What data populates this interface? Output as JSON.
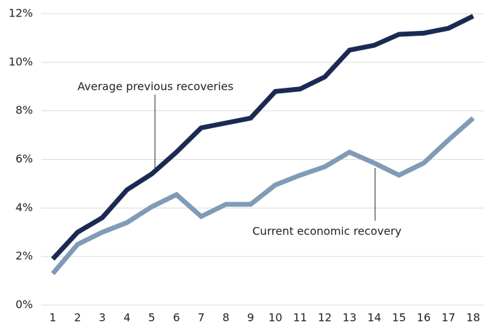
{
  "chart_data": {
    "type": "line",
    "x": [
      1,
      2,
      3,
      4,
      5,
      6,
      7,
      8,
      9,
      10,
      11,
      12,
      13,
      14,
      15,
      16,
      17,
      18
    ],
    "xlim": [
      1,
      18
    ],
    "xticks": [
      1,
      2,
      3,
      4,
      5,
      6,
      7,
      8,
      9,
      10,
      11,
      12,
      13,
      14,
      15,
      16,
      17,
      18
    ],
    "ylim": [
      0,
      12
    ],
    "yticks": [
      {
        "value": 0,
        "label": "0%"
      },
      {
        "value": 2,
        "label": "2%"
      },
      {
        "value": 4,
        "label": "4%"
      },
      {
        "value": 6,
        "label": "6%"
      },
      {
        "value": 8,
        "label": "8%"
      },
      {
        "value": 10,
        "label": "10%"
      },
      {
        "value": 12,
        "label": "12%"
      }
    ],
    "grid": true,
    "series": [
      {
        "name": "Average previous recoveries",
        "color": "#1b2a52",
        "values": [
          1.9,
          3.0,
          3.6,
          4.75,
          5.4,
          6.3,
          7.3,
          7.5,
          7.7,
          8.8,
          8.9,
          9.4,
          10.5,
          10.7,
          11.15,
          11.2,
          11.4,
          11.9
        ]
      },
      {
        "name": "Current economic recovery",
        "color": "#7f9bb7",
        "values": [
          1.3,
          2.5,
          3.0,
          3.4,
          4.05,
          4.55,
          3.65,
          4.15,
          4.15,
          4.95,
          5.35,
          5.7,
          6.3,
          5.85,
          5.35,
          5.85,
          6.8,
          7.7
        ]
      }
    ]
  }
}
